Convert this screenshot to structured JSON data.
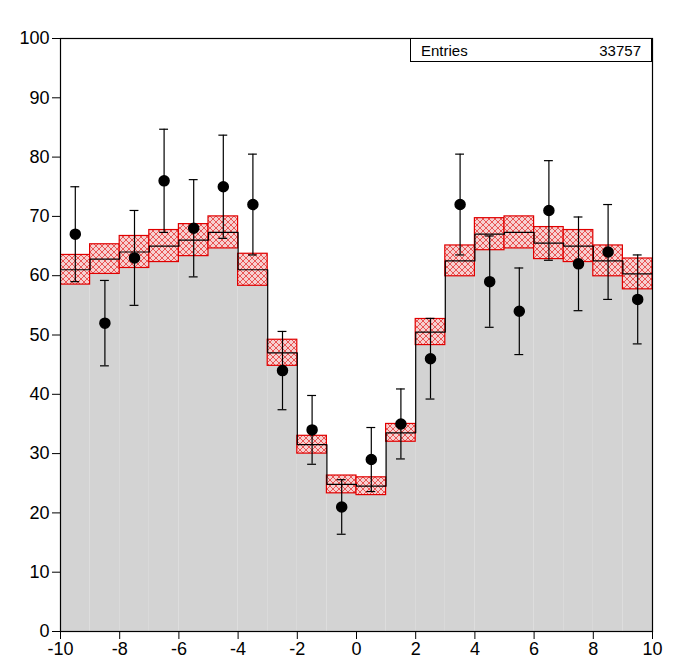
{
  "chart_data": {
    "type": "histogram",
    "bins": [
      -10,
      -9,
      -8,
      -7,
      -6,
      -5,
      -4,
      -3,
      -2,
      -1,
      0,
      1,
      2,
      3,
      4,
      5,
      6,
      7,
      8,
      9,
      10
    ],
    "values": [
      61,
      62.8,
      64,
      65,
      66,
      67.3,
      61,
      47,
      31.5,
      24.8,
      24.5,
      33.5,
      50.5,
      62.5,
      67,
      67.3,
      65.5,
      65,
      62.5,
      60.3
    ],
    "errors": [
      2.5,
      2.5,
      2.7,
      2.7,
      2.7,
      2.7,
      2.7,
      2.2,
      1.5,
      1.5,
      1.5,
      1.5,
      2.2,
      2.6,
      2.7,
      2.7,
      2.7,
      2.7,
      2.6,
      2.6
    ],
    "color": "#d3d3d3",
    "error_color": "#e00000",
    "points": {
      "color": "#000000",
      "marker": "circle",
      "x": [
        -9.5,
        -8.5,
        -7.5,
        -6.5,
        -5.5,
        -4.5,
        -3.5,
        -2.5,
        -1.5,
        -0.5,
        0.5,
        1.5,
        2.5,
        3.5,
        4.5,
        5.5,
        6.5,
        7.5,
        8.5,
        9.5
      ],
      "values": [
        67,
        52,
        63,
        76,
        68,
        75,
        72,
        44,
        34,
        21,
        29,
        35,
        46,
        72,
        59,
        54,
        71,
        62,
        64,
        56
      ],
      "errors": [
        8,
        7.2,
        8,
        8.7,
        8.2,
        8.7,
        8.5,
        6.6,
        5.8,
        4.6,
        5.4,
        5.9,
        6.8,
        8.5,
        7.7,
        7.3,
        8.4,
        7.9,
        8,
        7.5
      ]
    },
    "stats": {
      "label": "Entries",
      "value": 33757
    },
    "xlim": [
      -10,
      10
    ],
    "xticks": [
      -10,
      -8,
      -6,
      -4,
      -2,
      0,
      2,
      4,
      6,
      8,
      10
    ],
    "ylim": [
      0,
      100
    ],
    "yticks": [
      0,
      10,
      20,
      30,
      40,
      50,
      60,
      70,
      80,
      90,
      100
    ]
  }
}
